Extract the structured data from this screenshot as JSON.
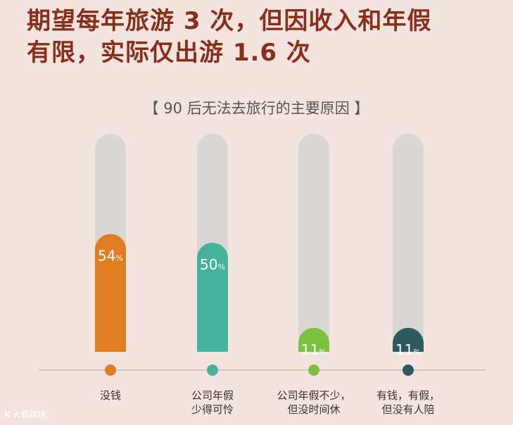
{
  "headline": {
    "line1": "期望每年旅游 3 次，但因收入和年假",
    "line2": "有限，实际仅出游 1.6 次"
  },
  "chart_data": {
    "type": "bar",
    "title": "【 90 后无法去旅行的主要原因 】",
    "categories": [
      "没钱",
      "公司年假少得可怜",
      "公司年假不少，但没时间休",
      "有钱，有假，但没有人陪"
    ],
    "category_lines": [
      [
        "没钱"
      ],
      [
        "公司年假",
        "少得可怜"
      ],
      [
        "公司年假不少，",
        "但没时间休"
      ],
      [
        "有钱，有假，",
        "但没有人陪"
      ]
    ],
    "values": [
      54,
      50,
      11,
      11
    ],
    "value_labels": [
      "54",
      "50",
      "11",
      "11"
    ],
    "unit": "%",
    "ylim": [
      0,
      100
    ],
    "colors": [
      "#e07c22",
      "#45b29b",
      "#7cc142",
      "#2c5a5e"
    ],
    "track_color": "#d9d7d4"
  },
  "watermark": {
    "logo": "K",
    "text": "大数跨境"
  }
}
